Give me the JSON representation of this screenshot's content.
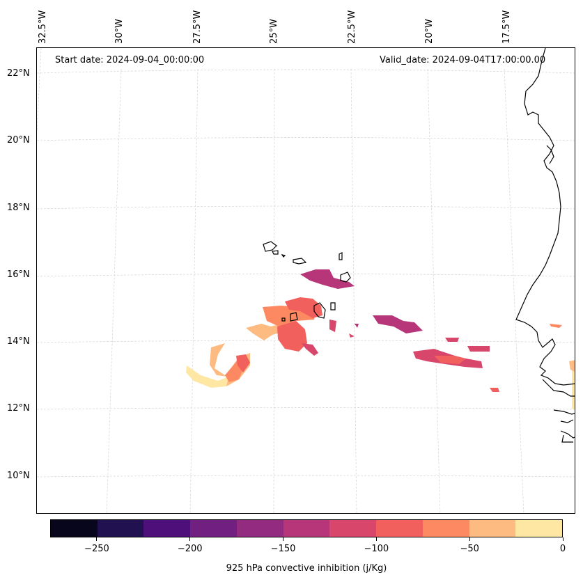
{
  "map": {
    "start_date": "Start date: 2024-09-04_00:00:00",
    "valid_date": "Valid_date: 2024-09-04T17:00:00.00",
    "longitude_labels": [
      "32.5°W",
      "30°W",
      "27.5°W",
      "25°W",
      "22.5°W",
      "20°W",
      "17.5°W"
    ],
    "latitude_labels": [
      "22°N",
      "20°N",
      "18°N",
      "16°N",
      "14°N",
      "12°N",
      "10°N"
    ],
    "gridlines": true,
    "coastline_color": "#000000",
    "grid_color": "#cccccc"
  },
  "colorbar": {
    "title": "925 hPa convective inhibition (j/Kg)",
    "min": -275,
    "max": 0,
    "ticks": [
      "−250",
      "−200",
      "−150",
      "−100",
      "−50",
      "0"
    ],
    "tick_values": [
      -250,
      -200,
      -150,
      -100,
      -50,
      0
    ],
    "colors": [
      "#07061c",
      "#221150",
      "#4e0f7b",
      "#711f81",
      "#932b80",
      "#b63679",
      "#d9466b",
      "#f1605d",
      "#fc8961",
      "#febb81",
      "#fde7a2"
    ]
  }
}
